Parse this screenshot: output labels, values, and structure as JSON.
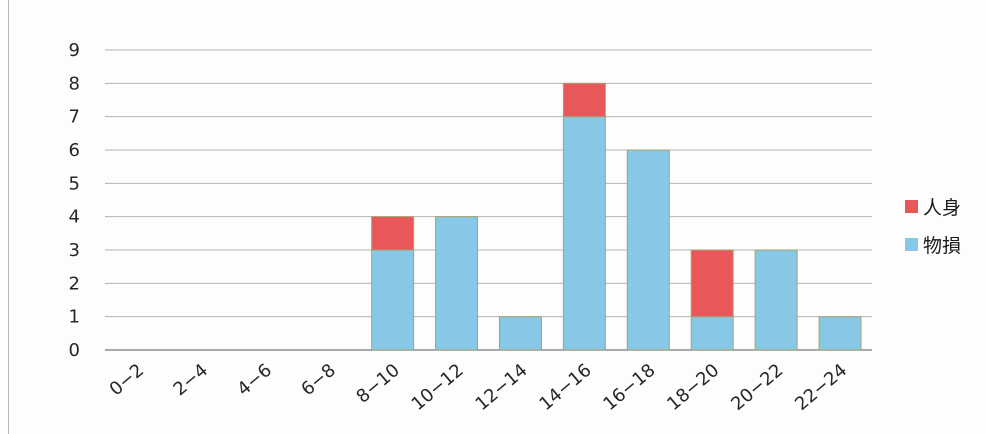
{
  "chart_data": {
    "type": "bar",
    "stacked": true,
    "title": "",
    "xlabel": "",
    "ylabel": "",
    "ylim": [
      0,
      9
    ],
    "yticks": [
      0,
      1,
      2,
      3,
      4,
      5,
      6,
      7,
      8,
      9
    ],
    "grid": true,
    "legend_position": "right",
    "categories": [
      "0−2",
      "2−4",
      "4−6",
      "6−8",
      "8−10",
      "10−12",
      "12−14",
      "14−16",
      "16−18",
      "18−20",
      "20−22",
      "22−24"
    ],
    "series": [
      {
        "name": "物損",
        "color": "#87c8e6",
        "values": [
          0,
          0,
          0,
          0,
          3,
          4,
          1,
          7,
          6,
          1,
          3,
          1
        ]
      },
      {
        "name": "人身",
        "color": "#e8585a",
        "values": [
          0,
          0,
          0,
          0,
          1,
          0,
          0,
          1,
          0,
          2,
          0,
          0
        ]
      }
    ],
    "legend": [
      {
        "name": "人身",
        "color": "#e8585a"
      },
      {
        "name": "物損",
        "color": "#87c8e6"
      }
    ]
  }
}
